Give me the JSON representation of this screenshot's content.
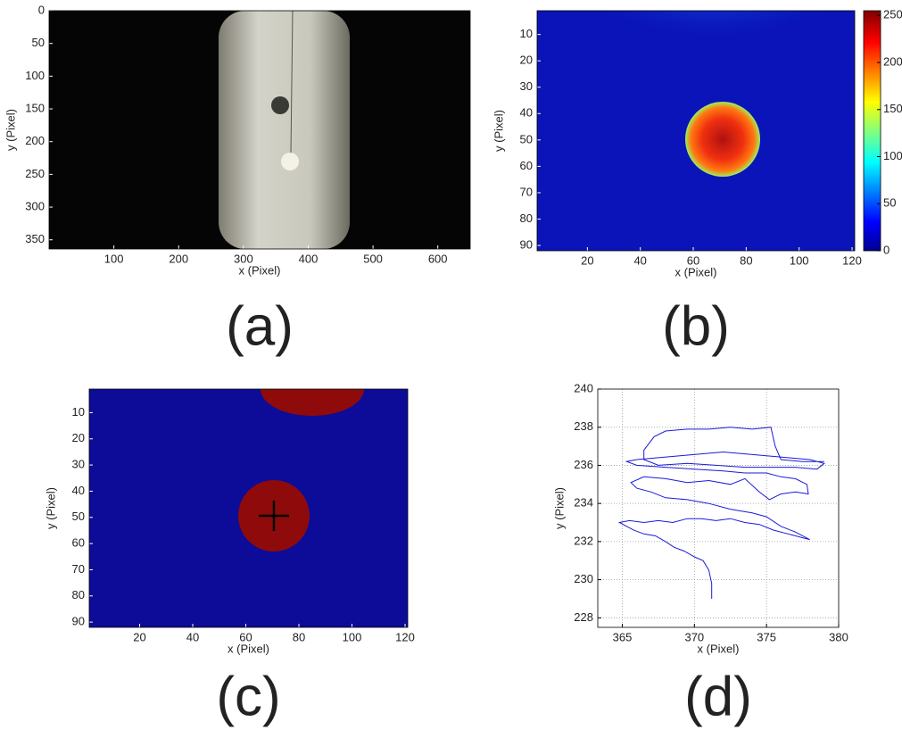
{
  "chart_data": [
    {
      "type": "image",
      "xlabel": "x (Pixel)",
      "ylabel": "y (Pixel)",
      "caption": "(a)",
      "xlim": [
        0,
        650
      ],
      "ylim": [
        0,
        364
      ],
      "y_reversed": true,
      "xticks": [
        100,
        200,
        300,
        400,
        500,
        600
      ],
      "yticks": [
        0,
        50,
        100,
        150,
        200,
        250,
        300,
        350
      ]
    },
    {
      "type": "heatmap",
      "xlabel": "x (Pixel)",
      "ylabel": "y (Pixel)",
      "caption": "(b)",
      "xlim": [
        1,
        121
      ],
      "ylim": [
        1,
        92
      ],
      "y_reversed": true,
      "xticks": [
        20,
        40,
        60,
        80,
        100,
        120
      ],
      "yticks": [
        10,
        20,
        30,
        40,
        50,
        60,
        70,
        80,
        90
      ],
      "clim": [
        0,
        255
      ],
      "cticks": [
        0,
        50,
        100,
        150,
        200,
        250
      ]
    },
    {
      "type": "image",
      "xlabel": "x (Pixel)",
      "ylabel": "y (Pixel)",
      "caption": "(c)",
      "xlim": [
        1,
        121
      ],
      "ylim": [
        1,
        92
      ],
      "y_reversed": true,
      "xticks": [
        20,
        40,
        60,
        80,
        100,
        120
      ],
      "yticks": [
        10,
        20,
        30,
        40,
        50,
        60,
        70,
        80,
        90
      ]
    },
    {
      "type": "line",
      "xlabel": "x (Pixel)",
      "ylabel": "y (Pixel)",
      "caption": "(d)",
      "xlim": [
        363.3,
        380
      ],
      "ylim": [
        227.5,
        240
      ],
      "xticks": [
        365,
        370,
        375,
        380
      ],
      "yticks": [
        228,
        230,
        232,
        234,
        236,
        238,
        240
      ],
      "grid": true,
      "color": "#1a1adb",
      "x": [
        371.2,
        371.2,
        371.0,
        370.6,
        370.0,
        369.3,
        368.6,
        368.0,
        367.3,
        366.5,
        365.8,
        365.3,
        364.8,
        365.5,
        366.5,
        367.5,
        368.5,
        369.5,
        370.5,
        371.5,
        372.5,
        373.5,
        374.5,
        375.5,
        376.5,
        377.5,
        378.0,
        377.0,
        376.0,
        375.0,
        374.0,
        372.5,
        371.0,
        369.5,
        368.0,
        367.0,
        366.0,
        365.6,
        366.5,
        368.0,
        369.5,
        371.0,
        372.5,
        373.5,
        374.5,
        375.2,
        376.0,
        377.0,
        377.9,
        377.8,
        377.0,
        376.0,
        375.0,
        373.5,
        372.0,
        370.0,
        368.0,
        366.0,
        365.3,
        366.0,
        367.5,
        369.0,
        370.5,
        372.0,
        373.5,
        375.0,
        376.5,
        378.0,
        379.0,
        378.5,
        377.0,
        375.5,
        373.5,
        371.5,
        369.5,
        367.5,
        366.5,
        366.5,
        367.2,
        368.0,
        369.5,
        371.0,
        372.5,
        374.0,
        375.3,
        375.6,
        376.0,
        377.5,
        379.0
      ],
      "values": [
        229.0,
        229.8,
        230.5,
        231.0,
        231.2,
        231.5,
        231.7,
        232.0,
        232.3,
        232.4,
        232.6,
        232.8,
        233.0,
        233.1,
        233.0,
        233.1,
        233.0,
        233.2,
        233.2,
        233.1,
        233.2,
        233.0,
        232.9,
        232.6,
        232.4,
        232.2,
        232.1,
        232.5,
        232.8,
        233.3,
        233.5,
        233.7,
        234.0,
        234.2,
        234.3,
        234.6,
        234.8,
        235.1,
        235.4,
        235.3,
        235.1,
        235.2,
        235.0,
        235.3,
        234.6,
        234.2,
        234.5,
        234.6,
        234.5,
        235.0,
        235.3,
        235.4,
        235.6,
        235.6,
        235.7,
        235.8,
        235.9,
        236.0,
        236.2,
        236.3,
        236.4,
        236.5,
        236.6,
        236.7,
        236.6,
        236.5,
        236.4,
        236.3,
        236.1,
        235.8,
        235.9,
        235.9,
        235.9,
        236.0,
        236.1,
        236.0,
        236.3,
        236.8,
        237.5,
        237.8,
        237.9,
        237.9,
        238.0,
        237.9,
        238.0,
        237.0,
        236.3,
        236.2,
        236.2
      ]
    }
  ]
}
